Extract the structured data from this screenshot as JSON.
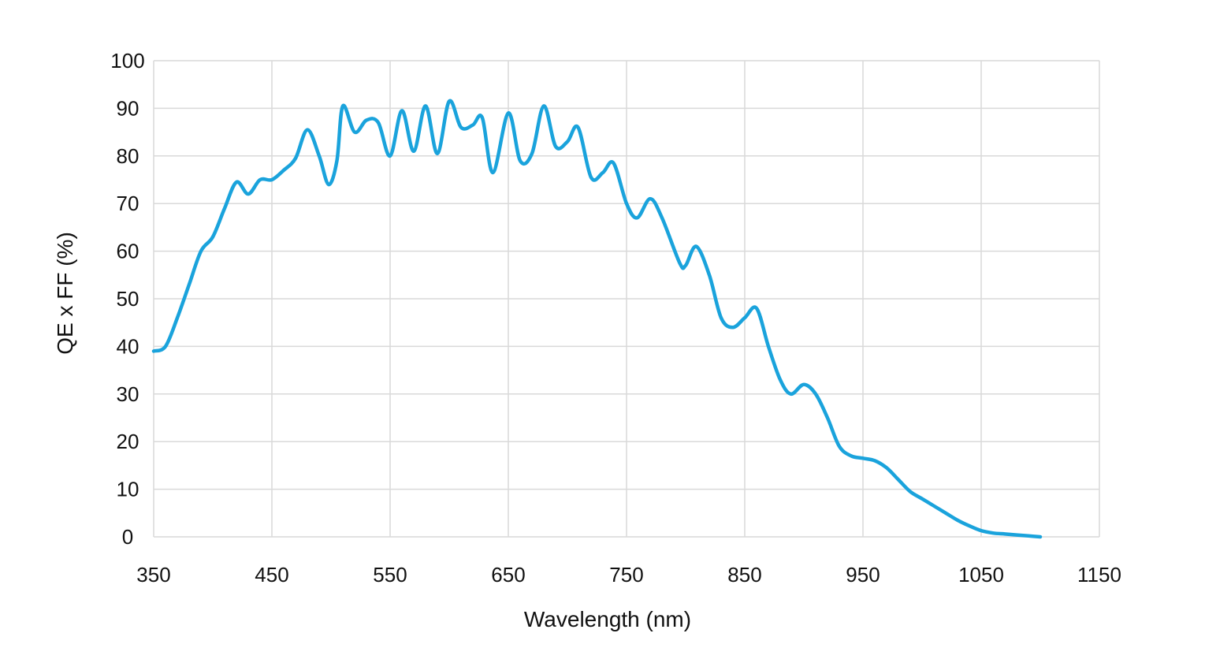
{
  "chart_data": {
    "type": "line",
    "title": "",
    "xlabel": "Wavelength (nm)",
    "ylabel": "QE x FF (%)",
    "xlim": [
      350,
      1150
    ],
    "ylim": [
      0,
      100
    ],
    "x_ticks": [
      350,
      450,
      550,
      650,
      750,
      850,
      950,
      1050,
      1150
    ],
    "y_ticks": [
      0,
      10,
      20,
      30,
      40,
      50,
      60,
      70,
      80,
      90,
      100
    ],
    "grid": true,
    "legend": "none",
    "line_color": "#1aa3dc",
    "grid_color": "#d9d9d9",
    "series": [
      {
        "x": [
          350,
          360,
          370,
          380,
          390,
          400,
          410,
          420,
          430,
          440,
          450,
          460,
          470,
          480,
          490,
          498,
          505,
          510,
          520,
          530,
          540,
          550,
          560,
          570,
          580,
          590,
          600,
          610,
          620,
          628,
          637,
          650,
          660,
          670,
          680,
          690,
          700,
          709,
          720,
          730,
          739,
          750,
          759,
          770,
          780,
          795,
          800,
          809,
          820,
          830,
          840,
          850,
          860,
          870,
          880,
          889,
          900,
          910,
          920,
          930,
          940,
          950,
          960,
          970,
          980,
          990,
          1000,
          1010,
          1020,
          1030,
          1040,
          1050,
          1060,
          1070,
          1080,
          1090,
          1100
        ],
        "y": [
          39,
          40,
          46,
          53,
          60,
          63,
          69,
          74.5,
          72,
          75,
          75,
          77,
          79.5,
          85.5,
          80,
          74,
          79,
          90.5,
          85,
          87.5,
          87,
          80,
          89.5,
          81,
          90.5,
          80.5,
          91.5,
          86,
          86.5,
          88,
          76.5,
          89,
          79,
          80.5,
          90.5,
          82,
          83,
          86,
          75.5,
          76.5,
          78.5,
          70,
          67,
          71,
          67,
          57.5,
          57,
          61,
          55,
          46,
          44,
          46,
          48,
          40,
          33,
          30,
          32,
          30,
          25,
          19,
          17,
          16.5,
          16,
          14.5,
          12,
          9.5,
          8,
          6.5,
          5,
          3.5,
          2.3,
          1.3,
          0.8,
          0.6,
          0.4,
          0.2,
          0
        ]
      }
    ]
  }
}
